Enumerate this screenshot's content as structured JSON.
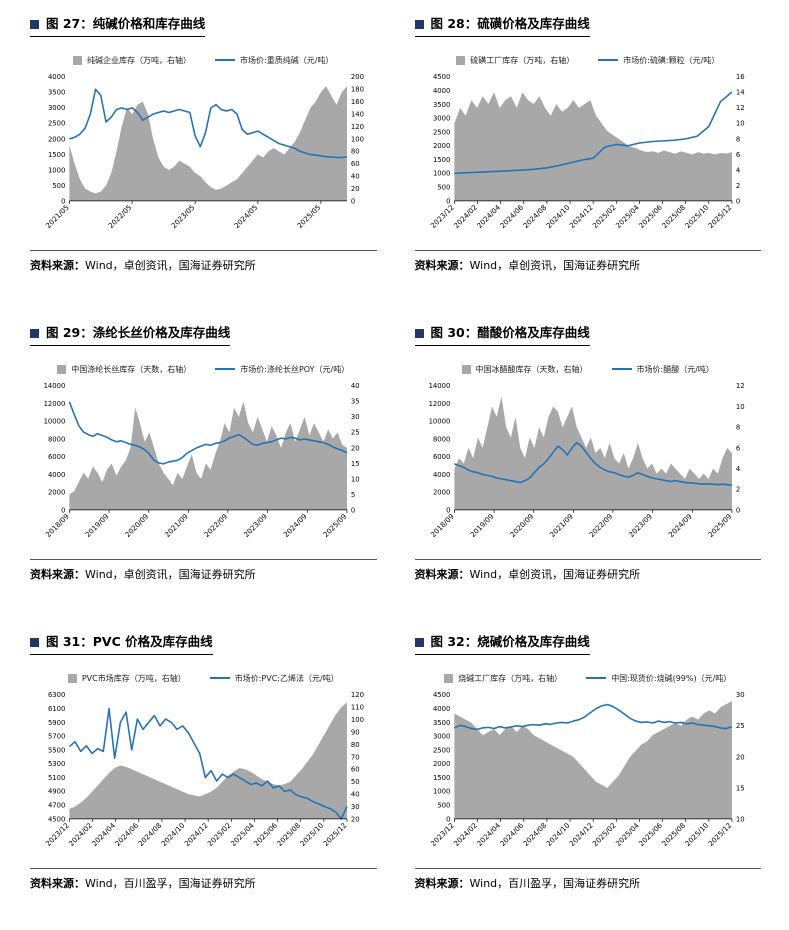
{
  "colors": {
    "title_bullet": "#1f3864",
    "line_blue": "#2572b4",
    "area_gray": "#a8a8a8",
    "axis": "#000000"
  },
  "chart_data": [
    {
      "id": "figure-27",
      "type": "combo",
      "title": "图 27：纯碱价格和库存曲线",
      "source_label": "资料来源：",
      "source": "Wind，卓创资讯，国海证券研究所",
      "left_axis": {
        "min": 0,
        "max": 4000,
        "step": 500
      },
      "right_axis": {
        "min": 0,
        "max": 200,
        "step": 20
      },
      "x_labels": [
        "2021/05",
        "2022/05",
        "2023/05",
        "2024/05",
        "2025/05"
      ],
      "x_positions": [
        0,
        0.226,
        0.453,
        0.679,
        0.906
      ],
      "series": [
        {
          "name": "纯碱企业库存（万吨，右轴）",
          "kind": "area",
          "axis": "right",
          "values": [
            90,
            60,
            35,
            20,
            15,
            12,
            15,
            25,
            45,
            80,
            120,
            150,
            140,
            155,
            160,
            140,
            100,
            70,
            55,
            50,
            55,
            65,
            60,
            55,
            45,
            40,
            30,
            22,
            18,
            20,
            25,
            30,
            35,
            45,
            55,
            65,
            75,
            70,
            80,
            85,
            80,
            75,
            85,
            95,
            110,
            130,
            150,
            160,
            175,
            185,
            170,
            155,
            175,
            185
          ]
        },
        {
          "name": "市场价:重质纯碱（元/吨）",
          "kind": "line",
          "axis": "left",
          "values": [
            2000,
            2050,
            2150,
            2350,
            2800,
            3600,
            3400,
            2550,
            2700,
            2950,
            3000,
            2950,
            3000,
            2850,
            2600,
            2700,
            2800,
            2850,
            2900,
            2850,
            2900,
            2950,
            2900,
            2850,
            2100,
            1750,
            2200,
            3000,
            3100,
            2950,
            2900,
            2950,
            2800,
            2300,
            2150,
            2200,
            2250,
            2150,
            2050,
            1950,
            1850,
            1800,
            1750,
            1700,
            1600,
            1550,
            1500,
            1480,
            1450,
            1430,
            1420,
            1400,
            1400,
            1420
          ]
        }
      ]
    },
    {
      "id": "figure-28",
      "type": "combo",
      "title": "图 28：硫磺价格及库存曲线",
      "source_label": "资料来源：",
      "source": "Wind，卓创资讯，国海证券研究所",
      "left_axis": {
        "min": 0,
        "max": 4500,
        "step": 500
      },
      "right_axis": {
        "min": 0,
        "max": 16,
        "step": 2
      },
      "x_labels": [
        "2023/12",
        "2024/02",
        "2024/04",
        "2024/06",
        "2024/08",
        "2024/10",
        "2024/12",
        "2025/02",
        "2025/04",
        "2025/06",
        "2025/08",
        "2025/10",
        "2025/12"
      ],
      "x_positions": [
        0,
        0.0833,
        0.1667,
        0.25,
        0.3333,
        0.4167,
        0.5,
        0.5833,
        0.6667,
        0.75,
        0.8333,
        0.9167,
        1
      ],
      "series": [
        {
          "name": "硫磺工厂库存（万吨，右轴）",
          "kind": "area",
          "axis": "right",
          "values": [
            10,
            12,
            11,
            13,
            12,
            13.5,
            12.5,
            14,
            12,
            13,
            13.5,
            12,
            14,
            13,
            12.5,
            13.5,
            12,
            11,
            12.5,
            11.5,
            12,
            13,
            12,
            12.5,
            13,
            11,
            10,
            9,
            8.5,
            8,
            7.5,
            7,
            6.8,
            6.5,
            6.3,
            6.4,
            6.2,
            6.5,
            6.3,
            6.1,
            6.4,
            6.2,
            6,
            6.3,
            6.1,
            6.2,
            6,
            6.2,
            6.1,
            6.3
          ]
        },
        {
          "name": "市场价:硫磺:颗粒（元/吨）",
          "kind": "line",
          "axis": "left",
          "values": [
            1000,
            1020,
            1040,
            1060,
            1080,
            1100,
            1120,
            1150,
            1200,
            1280,
            1380,
            1480,
            1550,
            1950,
            2050,
            2000,
            2100,
            2150,
            2180,
            2200,
            2250,
            2350,
            2700,
            3600,
            3950
          ]
        }
      ]
    },
    {
      "id": "figure-29",
      "type": "combo",
      "title": "图 29：涤纶长丝价格及库存曲线",
      "source_label": "资料来源：",
      "source": "Wind，卓创资讯，国海证券研究所",
      "left_axis": {
        "min": 0,
        "max": 14000,
        "step": 2000
      },
      "right_axis": {
        "min": 0,
        "max": 40,
        "step": 5
      },
      "x_labels": [
        "2018/09",
        "2019/09",
        "2020/09",
        "2021/09",
        "2022/09",
        "2023/09",
        "2024/09",
        "2025/09"
      ],
      "x_positions": [
        0,
        0.143,
        0.286,
        0.429,
        0.571,
        0.714,
        0.857,
        1
      ],
      "series": [
        {
          "name": "中国涤纶长丝库存（天数，右轴）",
          "kind": "area",
          "axis": "right",
          "values": [
            5,
            6,
            9,
            12,
            10,
            14,
            12,
            9,
            13,
            15,
            11,
            14,
            16,
            20,
            33,
            28,
            22,
            25,
            20,
            15,
            12,
            10,
            8,
            12,
            10,
            14,
            18,
            12,
            10,
            15,
            13,
            18,
            22,
            28,
            25,
            33,
            30,
            35,
            28,
            25,
            30,
            26,
            22,
            27,
            24,
            20,
            25,
            28,
            22,
            26,
            30,
            24,
            28,
            25,
            22,
            26,
            23,
            25,
            21,
            20
          ]
        },
        {
          "name": "市场价:涤纶长丝POY（元/吨）",
          "kind": "line",
          "axis": "left",
          "values": [
            12200,
            10800,
            9500,
            8800,
            8500,
            8300,
            8600,
            8400,
            8200,
            7900,
            7700,
            7800,
            7600,
            7400,
            7300,
            7100,
            6800,
            6300,
            5600,
            5300,
            5200,
            5400,
            5500,
            5600,
            5900,
            6400,
            6700,
            7000,
            7200,
            7400,
            7300,
            7500,
            7600,
            7800,
            8100,
            8300,
            8500,
            8200,
            7800,
            7400,
            7300,
            7500,
            7600,
            7700,
            7900,
            8100,
            8000,
            8200,
            8100,
            7900,
            8000,
            7900,
            7800,
            7700,
            7600,
            7400,
            7100,
            6900,
            6700,
            6450
          ]
        }
      ]
    },
    {
      "id": "figure-30",
      "type": "combo",
      "title": "图 30：醋酸价格及库存曲线",
      "source_label": "资料来源：",
      "source": "Wind，卓创资讯，国海证券研究所",
      "left_axis": {
        "min": 0,
        "max": 14000,
        "step": 2000
      },
      "right_axis": {
        "min": 0,
        "max": 12,
        "step": 2
      },
      "x_labels": [
        "2018/09",
        "2019/09",
        "2020/09",
        "2021/09",
        "2022/09",
        "2023/09",
        "2024/09",
        "2025/09"
      ],
      "x_positions": [
        0,
        0.143,
        0.286,
        0.429,
        0.571,
        0.714,
        0.857,
        1
      ],
      "series": [
        {
          "name": "中国冰醋酸库存（天数，右轴）",
          "kind": "area",
          "axis": "right",
          "values": [
            4,
            5,
            4.5,
            6,
            5,
            7,
            6,
            8,
            10,
            9,
            11,
            8,
            7,
            9,
            6,
            5,
            7,
            6,
            8,
            7,
            9,
            10,
            9.5,
            8,
            9,
            10,
            8,
            7,
            6,
            7,
            5.5,
            6,
            5,
            6.5,
            5,
            4.5,
            5.5,
            4,
            5,
            6.5,
            5,
            4,
            4.5,
            3.5,
            4,
            3.5,
            4.5,
            4,
            3.5,
            3,
            4,
            3.5,
            3,
            3.5,
            3,
            4,
            3.5,
            5,
            6,
            5.5
          ]
        },
        {
          "name": "市场价:醋酸（元/吨）",
          "kind": "line",
          "axis": "left",
          "values": [
            5200,
            5000,
            4800,
            4500,
            4300,
            4200,
            4000,
            3900,
            3800,
            3600,
            3500,
            3400,
            3300,
            3200,
            3100,
            3300,
            3600,
            4200,
            4800,
            5200,
            5800,
            6500,
            7200,
            6800,
            6200,
            7000,
            7600,
            7200,
            6500,
            5800,
            5200,
            4800,
            4500,
            4300,
            4200,
            4000,
            3800,
            3700,
            3900,
            4200,
            4000,
            3800,
            3600,
            3500,
            3400,
            3300,
            3200,
            3300,
            3200,
            3100,
            3050,
            3000,
            2950,
            2900,
            2950,
            2900,
            2850,
            2900,
            2850,
            2800
          ]
        }
      ]
    },
    {
      "id": "figure-31",
      "type": "combo",
      "title": "图 31：PVC 价格及库存曲线",
      "source_label": "资料来源：",
      "source": "Wind，百川盈孚，国海证券研究所",
      "left_axis": {
        "min": 4500,
        "max": 6300,
        "step": 200
      },
      "right_axis": {
        "min": 20,
        "max": 120,
        "step": 10
      },
      "x_labels": [
        "2023/12",
        "2024/02",
        "2024/04",
        "2024/06",
        "2024/08",
        "2024/10",
        "2024/12",
        "2025/02",
        "2025/04",
        "2025/06",
        "2025/08",
        "2025/10",
        "2025/12"
      ],
      "x_positions": [
        0,
        0.0833,
        0.1667,
        0.25,
        0.3333,
        0.4167,
        0.5,
        0.5833,
        0.6667,
        0.75,
        0.8333,
        0.9167,
        1
      ],
      "series": [
        {
          "name": "PVC市场库存（万吨，右轴）",
          "kind": "area",
          "axis": "right",
          "values": [
            28,
            30,
            33,
            37,
            42,
            47,
            52,
            57,
            61,
            63,
            62,
            60,
            58,
            56,
            54,
            52,
            50,
            48,
            46,
            44,
            42,
            40,
            39,
            38,
            40,
            42,
            45,
            50,
            55,
            58,
            61,
            60,
            58,
            55,
            52,
            50,
            48,
            47,
            48,
            50,
            55,
            60,
            66,
            72,
            80,
            88,
            96,
            104,
            110,
            114
          ]
        },
        {
          "name": "市场价:PVC:乙烯法（元/吨）",
          "kind": "line",
          "axis": "left",
          "values": [
            5550,
            5620,
            5480,
            5560,
            5450,
            5520,
            5480,
            6100,
            5380,
            5900,
            6050,
            5500,
            5950,
            5800,
            5900,
            6000,
            5850,
            5950,
            5900,
            5800,
            5850,
            5750,
            5600,
            5450,
            5100,
            5200,
            5050,
            5150,
            5100,
            5150,
            5100,
            5050,
            5000,
            5020,
            4980,
            5050,
            4950,
            4980,
            4900,
            4920,
            4850,
            4820,
            4800,
            4750,
            4720,
            4680,
            4650,
            4600,
            4500,
            4680
          ]
        }
      ]
    },
    {
      "id": "figure-32",
      "type": "combo",
      "title": "图 32：烧碱价格及库存曲线",
      "source_label": "资料来源：",
      "source": "Wind，百川盈孚，国海证券研究所",
      "left_axis": {
        "min": 0,
        "max": 4500,
        "step": 500
      },
      "right_axis": {
        "min": 10,
        "max": 30,
        "step": 5
      },
      "x_labels": [
        "2023/12",
        "2024/02",
        "2024/04",
        "2024/06",
        "2024/08",
        "2024/10",
        "2024/12",
        "2025/02",
        "2025/04",
        "2025/06",
        "2025/08",
        "2025/10",
        "2025/12"
      ],
      "x_positions": [
        0,
        0.0833,
        0.1667,
        0.25,
        0.3333,
        0.4167,
        0.5,
        0.5833,
        0.6667,
        0.75,
        0.8333,
        0.9167,
        1
      ],
      "series": [
        {
          "name": "烧碱工厂库存（万吨，右轴）",
          "kind": "area",
          "axis": "right",
          "values": [
            27,
            26.5,
            26,
            25.5,
            24.5,
            23.5,
            24,
            24.5,
            23.5,
            24.5,
            25,
            24,
            25,
            24.5,
            23.5,
            23,
            22.5,
            22,
            21.5,
            21,
            20.5,
            20,
            19,
            18,
            17,
            16,
            15.5,
            15,
            16,
            17,
            18.5,
            20,
            21,
            22,
            22.5,
            23.5,
            24,
            24.5,
            25,
            25.5,
            25,
            26,
            26.5,
            26,
            27,
            27.5,
            27,
            28,
            28.5,
            29
          ]
        },
        {
          "name": "中国:现货价:烧碱(99%)（元/吨）",
          "kind": "line",
          "axis": "left",
          "values": [
            3300,
            3400,
            3350,
            3280,
            3250,
            3300,
            3320,
            3280,
            3350,
            3300,
            3340,
            3380,
            3350,
            3400,
            3420,
            3400,
            3450,
            3430,
            3480,
            3500,
            3480,
            3550,
            3600,
            3700,
            3850,
            4000,
            4100,
            4150,
            4080,
            3950,
            3800,
            3650,
            3550,
            3500,
            3520,
            3480,
            3550,
            3500,
            3530,
            3480,
            3500,
            3450,
            3480,
            3420,
            3400,
            3380,
            3350,
            3300,
            3280,
            3350
          ]
        }
      ]
    }
  ]
}
